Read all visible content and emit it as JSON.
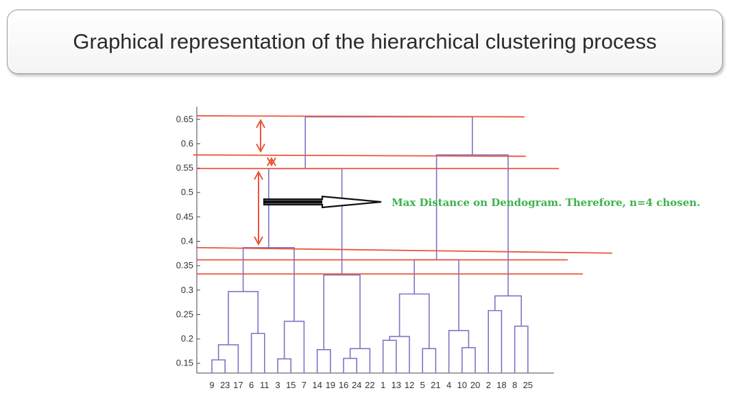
{
  "title": "Graphical representation of the hierarchical clustering process",
  "chart_data": {
    "type": "dendrogram",
    "ylim": [
      0.13,
      0.67
    ],
    "yticks": [
      0.15,
      0.2,
      0.25,
      0.3,
      0.35,
      0.4,
      0.45,
      0.5,
      0.55,
      0.6,
      0.65
    ],
    "ytick_labels": [
      "0.15",
      "0.2",
      "0.25",
      "0.3",
      "0.35",
      "0.4",
      "0.45",
      "0.5",
      "0.55",
      "0.6",
      "0.65"
    ],
    "leaves": [
      "9",
      "23",
      "17",
      "6",
      "11",
      "3",
      "15",
      "7",
      "14",
      "19",
      "16",
      "24",
      "22",
      "1",
      "13",
      "12",
      "5",
      "21",
      "4",
      "10",
      "20",
      "2",
      "18",
      "8",
      "25"
    ],
    "merges": [
      {
        "a": "L0",
        "b": "L1",
        "h": 0.157
      },
      {
        "a": "M0",
        "b": "L2",
        "h": 0.188
      },
      {
        "a": "L3",
        "b": "L4",
        "h": 0.211
      },
      {
        "a": "M1",
        "b": "M2",
        "h": 0.297
      },
      {
        "a": "L5",
        "b": "L6",
        "h": 0.159
      },
      {
        "a": "M4",
        "b": "L7",
        "h": 0.236
      },
      {
        "a": "M3",
        "b": "M5",
        "h": 0.387
      },
      {
        "a": "L8",
        "b": "L9",
        "h": 0.178
      },
      {
        "a": "L10",
        "b": "L11",
        "h": 0.16
      },
      {
        "a": "M8",
        "b": "L12",
        "h": 0.18
      },
      {
        "a": "M7",
        "b": "M9",
        "h": 0.331
      },
      {
        "a": "M6",
        "b": "M10",
        "h": 0.549
      },
      {
        "a": "L13",
        "b": "L14",
        "h": 0.197
      },
      {
        "a": "M12",
        "b": "L15",
        "h": 0.205
      },
      {
        "a": "L16",
        "b": "L17",
        "h": 0.18
      },
      {
        "a": "M13",
        "b": "M14",
        "h": 0.292
      },
      {
        "a": "L19",
        "b": "L20",
        "h": 0.182
      },
      {
        "a": "L18",
        "b": "M16",
        "h": 0.217
      },
      {
        "a": "M15",
        "b": "M17",
        "h": 0.362
      },
      {
        "a": "L21",
        "b": "L22",
        "h": 0.258
      },
      {
        "a": "L23",
        "b": "L24",
        "h": 0.226
      },
      {
        "a": "M19",
        "b": "M20",
        "h": 0.288
      },
      {
        "a": "M18",
        "b": "M21",
        "h": 0.577
      },
      {
        "a": "M11",
        "b": "M22",
        "h": 0.655
      }
    ],
    "cut_lines": [
      0.655,
      0.577,
      0.549,
      0.387,
      0.362,
      0.333
    ],
    "annotation": "Max Distance on Dendogram. Therefore, n=4 chosen.",
    "colors": {
      "tree": "#7b74c6",
      "cut": "#e8553a",
      "arrow": "#e8553a",
      "axis": "#444444",
      "annotation": "#3cb34a",
      "pointer": "#111111"
    }
  }
}
